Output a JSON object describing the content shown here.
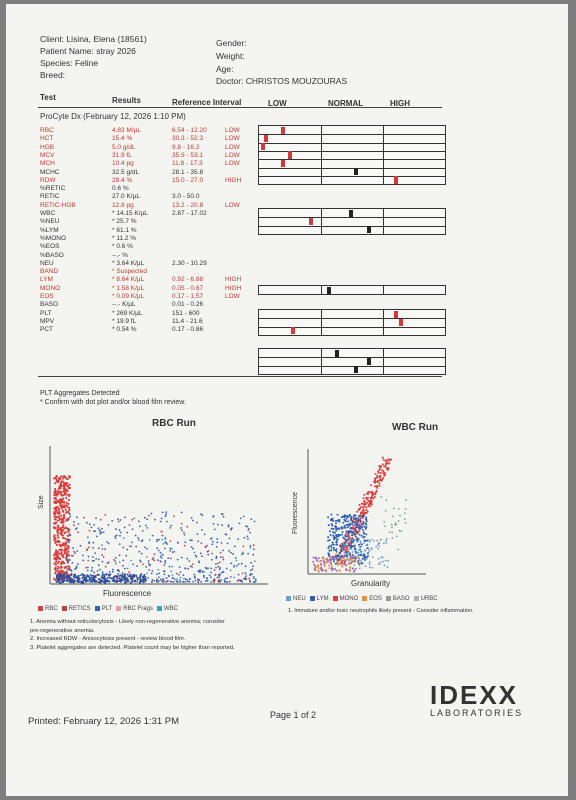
{
  "patient": {
    "client": "Client: Lisina, Elena (18561)",
    "patient_name": "Patient Name: stray 2026",
    "species": "Species: Feline",
    "breed": "Breed:",
    "gender": "Gender:",
    "weight": "Weight:",
    "age": "Age:",
    "doctor": "Doctor: CHRISTOS MOUZOURAS"
  },
  "columns": {
    "test": "Test",
    "results": "Results",
    "ref": "Reference Interval",
    "low": "LOW",
    "normal": "NORMAL",
    "high": "HIGH"
  },
  "run_title": "ProCyte Dx (February 12, 2026 1:10 PM)",
  "rows": [
    {
      "test": "RBC",
      "result": "4.83 M/µL",
      "ref": "6.54 - 12.20",
      "flag": "LOW",
      "red": true
    },
    {
      "test": "HCT",
      "result": "15.4 %",
      "ref": "30.3 - 52.3",
      "flag": "LOW",
      "red": true
    },
    {
      "test": "HGB",
      "result": "5.0 g/dL",
      "ref": "9.8 - 16.2",
      "flag": "LOW",
      "red": true
    },
    {
      "test": "MCV",
      "result": "31.9 fL",
      "ref": "35.9 - 53.1",
      "flag": "LOW",
      "red": true
    },
    {
      "test": "MCH",
      "result": "10.4 pg",
      "ref": "11.8 - 17.3",
      "flag": "LOW",
      "red": true
    },
    {
      "test": "MCHC",
      "result": "32.5 g/dL",
      "ref": "28.1 - 35.8",
      "flag": "",
      "red": false
    },
    {
      "test": "RDW",
      "result": "28.4 %",
      "ref": "15.0 - 27.0",
      "flag": "HIGH",
      "red": true
    },
    {
      "test": "%RETIC",
      "result": "0.6 %",
      "ref": "",
      "flag": "",
      "red": false
    },
    {
      "test": "RETIC",
      "result": "27.0 K/µL",
      "ref": "3.0 - 50.0",
      "flag": "",
      "red": false
    },
    {
      "test": "RETIC-HGB",
      "result": "12.8 pg",
      "ref": "13.2 - 20.8",
      "flag": "LOW",
      "red": true
    },
    {
      "test": "WBC",
      "result": "* 14.15 K/µL",
      "ref": "2.87 - 17.02",
      "flag": "",
      "red": false
    },
    {
      "test": "%NEU",
      "result": "* 25.7 %",
      "ref": "",
      "flag": "",
      "red": false
    },
    {
      "test": "%LYM",
      "result": "* 61.1 %",
      "ref": "",
      "flag": "",
      "red": false
    },
    {
      "test": "%MONO",
      "result": "* 11.2 %",
      "ref": "",
      "flag": "",
      "red": false
    },
    {
      "test": "%EOS",
      "result": "* 0.6 %",
      "ref": "",
      "flag": "",
      "red": false
    },
    {
      "test": "%BASO",
      "result": "--.- %",
      "ref": "",
      "flag": "",
      "red": false
    },
    {
      "test": "NEU",
      "result": "* 3.64 K/µL",
      "ref": "2.30 - 10.29",
      "flag": "",
      "red": false
    },
    {
      "test": "BAND",
      "result": "* Suspected",
      "ref": "",
      "flag": "",
      "red": true
    },
    {
      "test": "LYM",
      "result": "* 8.64 K/µL",
      "ref": "0.92 - 6.88",
      "flag": "HIGH",
      "red": true
    },
    {
      "test": "MONO",
      "result": "* 1.58 K/µL",
      "ref": "0.05 - 0.67",
      "flag": "HIGH",
      "red": true
    },
    {
      "test": "EOS",
      "result": "* 0.09 K/µL",
      "ref": "0.17 - 1.57",
      "flag": "LOW",
      "red": true
    },
    {
      "test": "BASO",
      "result": "--.- K/µL",
      "ref": "0.01 - 0.26",
      "flag": "",
      "red": false
    },
    {
      "test": "PLT",
      "result": "* 269 K/µL",
      "ref": "151 - 600",
      "flag": "",
      "red": false
    },
    {
      "test": "MPV",
      "result": "* 19.9 fL",
      "ref": "11.4 - 21.6",
      "flag": "",
      "red": false
    },
    {
      "test": "PCT",
      "result": "* 0.54 %",
      "ref": "0.17 - 0.86",
      "flag": "",
      "red": false
    }
  ],
  "bars": [
    {
      "group": 1,
      "levels": [
        0.12,
        0.03,
        0.01,
        0.16,
        0.12,
        0.53,
        0.75
      ]
    },
    {
      "group": 2,
      "levels": [
        0.5,
        0.28,
        0.6
      ]
    },
    {
      "group": 3,
      "levels": [
        0.38
      ]
    },
    {
      "group": 4,
      "levels": [
        0.75,
        0.78,
        0.18
      ]
    },
    {
      "group": 5,
      "levels": [
        0.42,
        0.6,
        0.53
      ]
    }
  ],
  "notes": {
    "plt_aggregates": "PLT Aggregates Detected",
    "confirm": "* Confirm with dot plot and/or blood film review."
  },
  "rbc_plot": {
    "title": "RBC Run",
    "ylabel": "Size",
    "xlabel": "Fluorescence",
    "legend": [
      "RBC",
      "RETICS",
      "PLT",
      "RBC Frags",
      "WBC"
    ],
    "legend_colors": [
      "#d84040",
      "#c04040",
      "#3a63b0",
      "#e8a0a0",
      "#40a0b0"
    ]
  },
  "wbc_plot": {
    "title": "WBC Run",
    "ylabel": "Fluorescence",
    "xlabel": "Granularity",
    "legend": [
      "NEU",
      "LYM",
      "MONO",
      "EOS",
      "BASO",
      "URBC"
    ],
    "legend_colors": [
      "#6aa0d0",
      "#2e5fb0",
      "#d84040",
      "#e89040",
      "#999999",
      "#b0b0b0"
    ]
  },
  "interpretation": {
    "rbc": [
      "1. Anemia without reticulocytosis - Likely non-regenerative anemia; consider",
      "pre-regenerative anemia.",
      "2. Increased RDW - Anisocytosis present - review blood film.",
      "3. Platelet aggregates are detected. Platelet count may be higher than reported."
    ],
    "wbc": "1. Immature and/or toxic neutrophils likely present - Consider inflammation."
  },
  "footer": {
    "printed": "Printed: February 12, 2026 1:31 PM",
    "page": "Page 1 of 2",
    "logo": "IDEXX",
    "logo_sub": "LABORATORIES"
  }
}
